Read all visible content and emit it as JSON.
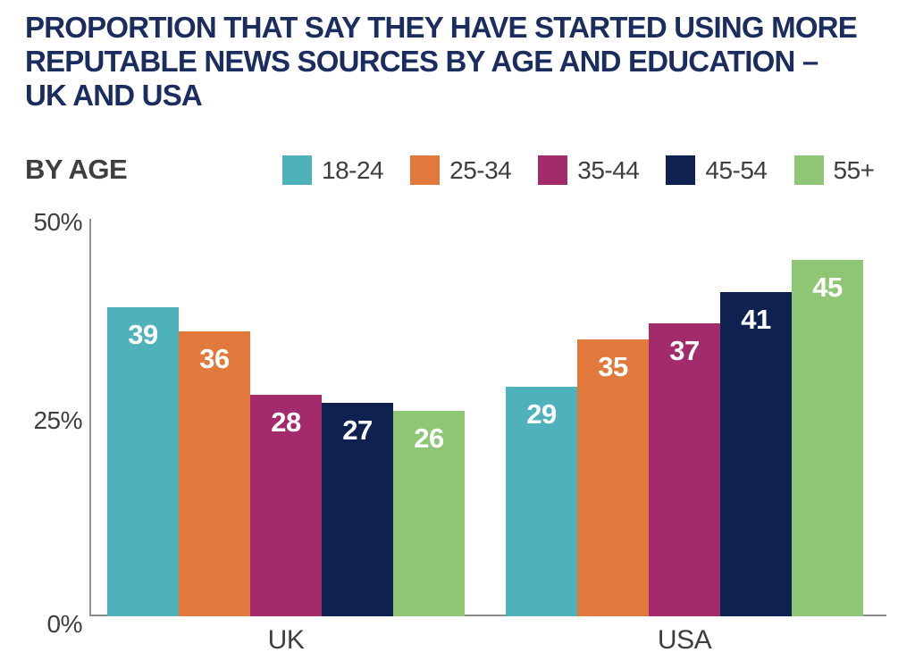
{
  "title": {
    "lines": [
      "PROPORTION THAT SAY THEY HAVE STARTED USING MORE",
      "REPUTABLE NEWS SOURCES BY AGE AND EDUCATION –",
      "UK AND USA"
    ]
  },
  "section_label": "BY AGE",
  "colors": {
    "title_navy": "#1B2C5F",
    "text_gray": "#3E3E3E",
    "axis_gray": "#8C8C8C",
    "bar_label_white": "#FFFFFF"
  },
  "chart_data": {
    "type": "bar",
    "categories": [
      "UK",
      "USA"
    ],
    "series": [
      {
        "name": "18-24",
        "color": "#4FB1BA",
        "values": [
          39,
          29
        ]
      },
      {
        "name": "25-34",
        "color": "#E2793C",
        "values": [
          36,
          35
        ]
      },
      {
        "name": "35-44",
        "color": "#A42B6B",
        "values": [
          28,
          37
        ]
      },
      {
        "name": "45-54",
        "color": "#0E2150",
        "values": [
          27,
          41
        ]
      },
      {
        "name": "55+",
        "color": "#8FC676",
        "values": [
          26,
          45
        ]
      }
    ],
    "title": "PROPORTION THAT SAY THEY HAVE STARTED USING MORE REPUTABLE NEWS SOURCES BY AGE AND EDUCATION – UK AND USA",
    "xlabel": "",
    "ylabel": "",
    "ylim": [
      0,
      50
    ],
    "y_ticks": [
      {
        "label": "50%",
        "value": 50
      },
      {
        "label": "25%",
        "value": 25
      },
      {
        "label": "0%",
        "value": 0
      }
    ],
    "grid": false,
    "legend_position": "top",
    "bar_labels_shown": true
  }
}
